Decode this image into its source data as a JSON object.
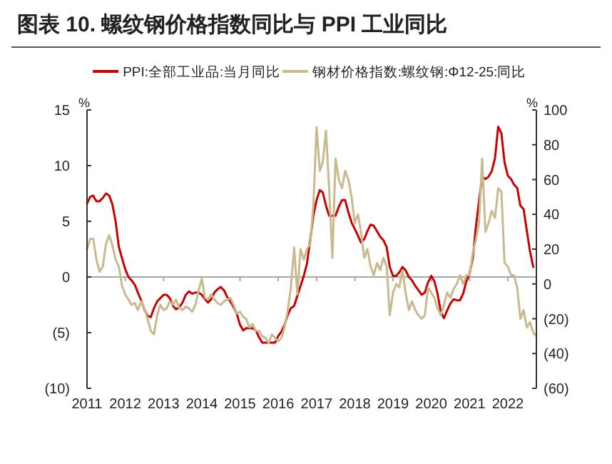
{
  "chart_data": {
    "type": "line",
    "title": "图表 10. 螺纹钢价格指数同比与 PPI 工业同比",
    "ylabel": "%",
    "y2label": "%",
    "x": [
      "2011-01",
      "2011-02",
      "2011-03",
      "2011-04",
      "2011-05",
      "2011-06",
      "2011-07",
      "2011-08",
      "2011-09",
      "2011-10",
      "2011-11",
      "2011-12",
      "2012-01",
      "2012-02",
      "2012-03",
      "2012-04",
      "2012-05",
      "2012-06",
      "2012-07",
      "2012-08",
      "2012-09",
      "2012-10",
      "2012-11",
      "2012-12",
      "2013-01",
      "2013-02",
      "2013-03",
      "2013-04",
      "2013-05",
      "2013-06",
      "2013-07",
      "2013-08",
      "2013-09",
      "2013-10",
      "2013-11",
      "2013-12",
      "2014-01",
      "2014-02",
      "2014-03",
      "2014-04",
      "2014-05",
      "2014-06",
      "2014-07",
      "2014-08",
      "2014-09",
      "2014-10",
      "2014-11",
      "2014-12",
      "2015-01",
      "2015-02",
      "2015-03",
      "2015-04",
      "2015-05",
      "2015-06",
      "2015-07",
      "2015-08",
      "2015-09",
      "2015-10",
      "2015-11",
      "2015-12",
      "2016-01",
      "2016-02",
      "2016-03",
      "2016-04",
      "2016-05",
      "2016-06",
      "2016-07",
      "2016-08",
      "2016-09",
      "2016-10",
      "2016-11",
      "2016-12",
      "2017-01",
      "2017-02",
      "2017-03",
      "2017-04",
      "2017-05",
      "2017-06",
      "2017-07",
      "2017-08",
      "2017-09",
      "2017-10",
      "2017-11",
      "2017-12",
      "2018-01",
      "2018-02",
      "2018-03",
      "2018-04",
      "2018-05",
      "2018-06",
      "2018-07",
      "2018-08",
      "2018-09",
      "2018-10",
      "2018-11",
      "2018-12",
      "2019-01",
      "2019-02",
      "2019-03",
      "2019-04",
      "2019-05",
      "2019-06",
      "2019-07",
      "2019-08",
      "2019-09",
      "2019-10",
      "2019-11",
      "2019-12",
      "2020-01",
      "2020-02",
      "2020-03",
      "2020-04",
      "2020-05",
      "2020-06",
      "2020-07",
      "2020-08",
      "2020-09",
      "2020-10",
      "2020-11",
      "2020-12",
      "2021-01",
      "2021-02",
      "2021-03",
      "2021-04",
      "2021-05",
      "2021-06",
      "2021-07",
      "2021-08",
      "2021-09",
      "2021-10",
      "2021-11",
      "2021-12",
      "2022-01",
      "2022-02",
      "2022-03",
      "2022-04",
      "2022-05",
      "2022-06",
      "2022-07",
      "2022-08",
      "2022-09",
      "2022-10"
    ],
    "series": [
      {
        "name": "PPI:全部工业品:当月同比",
        "color": "#cc0000",
        "values": [
          6.6,
          7.2,
          7.3,
          6.8,
          6.8,
          7.1,
          7.5,
          7.3,
          6.5,
          5.0,
          2.7,
          1.7,
          0.7,
          0.0,
          -0.3,
          -0.7,
          -1.4,
          -2.1,
          -2.9,
          -3.5,
          -3.6,
          -2.8,
          -2.2,
          -1.9,
          -1.6,
          -1.6,
          -1.9,
          -2.6,
          -2.9,
          -2.7,
          -2.3,
          -1.6,
          -1.3,
          -1.5,
          -1.4,
          -1.4,
          -1.6,
          -2.0,
          -2.3,
          -2.0,
          -1.4,
          -1.1,
          -0.9,
          -1.2,
          -1.8,
          -2.2,
          -2.7,
          -3.3,
          -4.3,
          -4.8,
          -4.6,
          -4.6,
          -4.6,
          -4.8,
          -5.4,
          -5.9,
          -5.9,
          -5.9,
          -5.9,
          -5.9,
          -5.3,
          -4.9,
          -4.3,
          -3.4,
          -2.8,
          -2.6,
          -1.7,
          -0.8,
          0.1,
          1.2,
          3.3,
          5.5,
          6.9,
          7.8,
          7.6,
          6.4,
          5.5,
          5.5,
          5.5,
          6.3,
          6.9,
          6.9,
          5.8,
          4.9,
          4.3,
          3.7,
          3.1,
          3.4,
          4.1,
          4.7,
          4.6,
          4.1,
          3.6,
          3.3,
          2.7,
          0.9,
          0.1,
          0.1,
          0.4,
          0.9,
          0.6,
          0.0,
          -0.3,
          -0.8,
          -1.2,
          -1.6,
          -1.4,
          -0.5,
          0.1,
          -0.4,
          -1.5,
          -3.1,
          -3.7,
          -3.0,
          -2.4,
          -2.0,
          -2.1,
          -2.1,
          -1.5,
          -0.4,
          0.3,
          1.7,
          4.4,
          6.8,
          9.0,
          8.8,
          9.0,
          9.5,
          10.7,
          13.5,
          12.9,
          10.3,
          9.1,
          8.8,
          8.3,
          8.0,
          6.4,
          6.1,
          4.2,
          2.3,
          0.9,
          null
        ]
      },
      {
        "name": "钢材价格指数:螺纹钢:Φ12-25:同比",
        "color": "#c8b98f",
        "axis": "y2",
        "values": [
          20,
          26,
          26,
          14,
          7,
          10,
          23,
          28,
          22,
          14,
          10,
          -1,
          -6,
          -9,
          -12,
          -11,
          -15,
          -10,
          -14,
          -20,
          -27,
          -29,
          -18,
          -12,
          -15,
          -14,
          -10,
          -12,
          -9,
          -14,
          -15,
          -13,
          -14,
          -16,
          -12,
          -4,
          3,
          -8,
          -9,
          -6,
          -9,
          -11,
          -12,
          -10,
          -9,
          -8,
          -12,
          -17,
          -16,
          -19,
          -20,
          -25,
          -23,
          -27,
          -27,
          -30,
          -31,
          -34,
          -29,
          -31,
          -33,
          -31,
          -25,
          -15,
          -2,
          21,
          -6,
          20,
          14,
          20,
          23,
          45,
          90,
          65,
          70,
          88,
          55,
          15,
          72,
          60,
          55,
          65,
          60,
          50,
          35,
          40,
          30,
          15,
          20,
          10,
          5,
          12,
          8,
          15,
          10,
          -18,
          -5,
          0,
          -2,
          8,
          -5,
          -15,
          -10,
          -15,
          -18,
          -20,
          -18,
          -2,
          -5,
          -8,
          -14,
          -18,
          -12,
          -5,
          -8,
          -3,
          0,
          5,
          0,
          5,
          5,
          18,
          25,
          35,
          72,
          30,
          35,
          42,
          38,
          55,
          53,
          12,
          10,
          5,
          5,
          -2,
          -20,
          -15,
          -25,
          -22,
          -28,
          -30
        ]
      }
    ],
    "xlim": [
      "2011-01",
      "2022-10"
    ],
    "xticks": [
      {
        "value": "2011",
        "label": "2011"
      },
      {
        "value": "2012",
        "label": "2012"
      },
      {
        "value": "2013",
        "label": "2013"
      },
      {
        "value": "2014",
        "label": "2014"
      },
      {
        "value": "2015",
        "label": "2015"
      },
      {
        "value": "2016",
        "label": "2016"
      },
      {
        "value": "2017",
        "label": "2017"
      },
      {
        "value": "2018",
        "label": "2018"
      },
      {
        "value": "2019",
        "label": "2019"
      },
      {
        "value": "2020",
        "label": "2020"
      },
      {
        "value": "2021",
        "label": "2021"
      },
      {
        "value": "2022",
        "label": "2022"
      }
    ],
    "ylim": [
      -10,
      15
    ],
    "yticks": [
      {
        "value": -10,
        "label": "(10)"
      },
      {
        "value": -5,
        "label": "(5)"
      },
      0,
      5,
      10,
      15
    ],
    "y2lim": [
      -60,
      100
    ],
    "y2ticks": [
      {
        "value": -60,
        "label": "(60)"
      },
      {
        "value": -40,
        "label": "(40)"
      },
      {
        "value": -20,
        "label": "(20)"
      },
      0,
      20,
      40,
      60,
      80,
      100
    ],
    "ref_lines": [
      {
        "axis": "y",
        "value": 0,
        "color": "#a6a6a6"
      }
    ],
    "legend": "top",
    "grid": false,
    "line_style": "solid",
    "marker": "none"
  }
}
